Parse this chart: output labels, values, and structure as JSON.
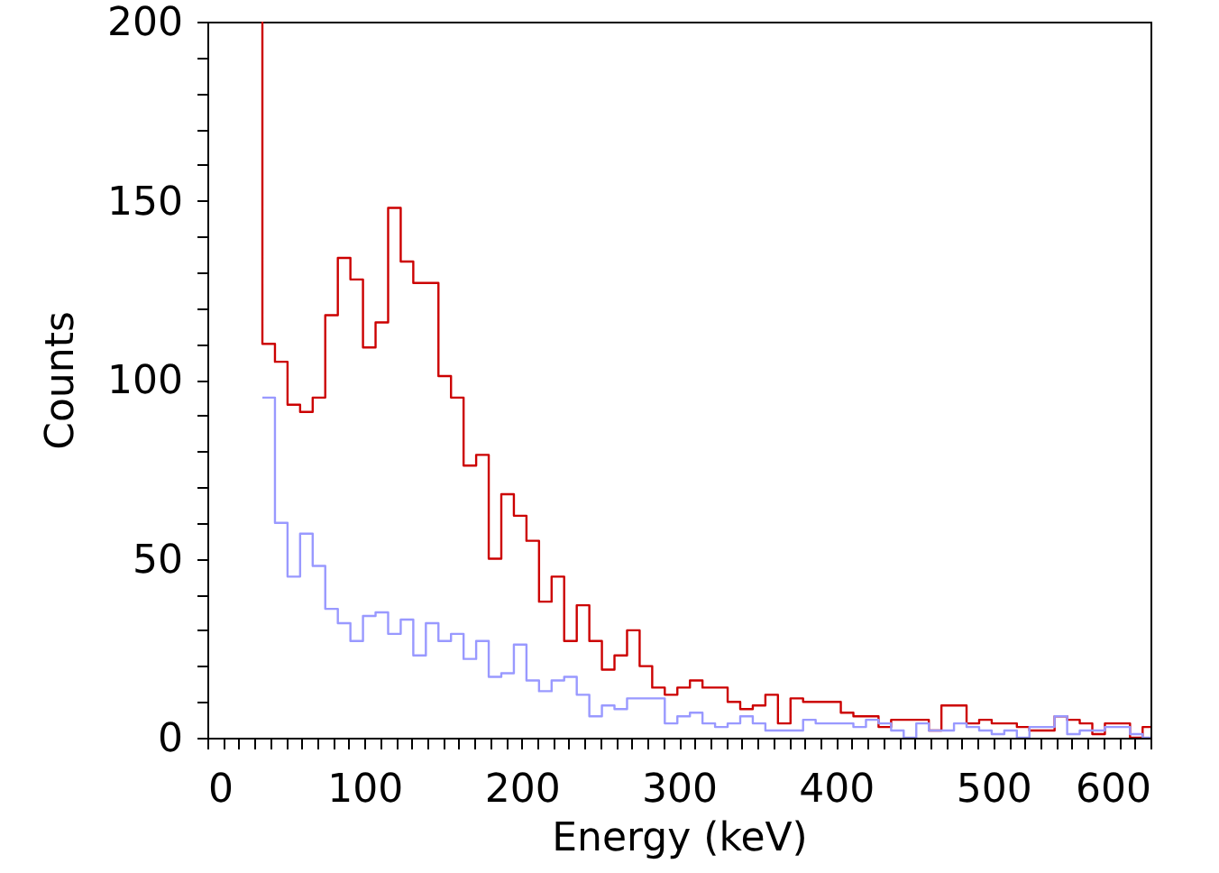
{
  "chart_data": {
    "type": "step",
    "xlabel": "Energy (keV)",
    "ylabel": "Counts",
    "xlim": [
      0,
      600
    ],
    "ylim": [
      0,
      200
    ],
    "xticks": [
      0,
      {
        "value": 10,
        "label": null
      },
      {
        "value": 20,
        "label": null
      },
      {
        "value": 30,
        "label": null
      },
      {
        "value": 40,
        "label": null
      },
      {
        "value": 50,
        "label": null
      },
      {
        "value": 60,
        "label": null
      },
      {
        "value": 70,
        "label": null
      },
      {
        "value": 80,
        "label": null
      },
      {
        "value": 90,
        "label": null
      },
      100,
      {
        "value": 110,
        "label": null
      },
      {
        "value": 120,
        "label": null
      },
      {
        "value": 130,
        "label": null
      },
      {
        "value": 140,
        "label": null
      },
      {
        "value": 150,
        "label": null
      },
      {
        "value": 160,
        "label": null
      },
      {
        "value": 170,
        "label": null
      },
      {
        "value": 180,
        "label": null
      },
      {
        "value": 190,
        "label": null
      },
      200,
      {
        "value": 210,
        "label": null
      },
      {
        "value": 220,
        "label": null
      },
      {
        "value": 230,
        "label": null
      },
      {
        "value": 240,
        "label": null
      },
      {
        "value": 250,
        "label": null
      },
      {
        "value": 260,
        "label": null
      },
      {
        "value": 270,
        "label": null
      },
      {
        "value": 280,
        "label": null
      },
      {
        "value": 290,
        "label": null
      },
      300,
      {
        "value": 310,
        "label": null
      },
      {
        "value": 320,
        "label": null
      },
      {
        "value": 330,
        "label": null
      },
      {
        "value": 340,
        "label": null
      },
      {
        "value": 350,
        "label": null
      },
      {
        "value": 360,
        "label": null
      },
      {
        "value": 370,
        "label": null
      },
      {
        "value": 380,
        "label": null
      },
      {
        "value": 390,
        "label": null
      },
      400,
      {
        "value": 410,
        "label": null
      },
      {
        "value": 420,
        "label": null
      },
      {
        "value": 430,
        "label": null
      },
      {
        "value": 440,
        "label": null
      },
      {
        "value": 450,
        "label": null
      },
      {
        "value": 460,
        "label": null
      },
      {
        "value": 470,
        "label": null
      },
      {
        "value": 480,
        "label": null
      },
      {
        "value": 490,
        "label": null
      },
      500,
      {
        "value": 510,
        "label": null
      },
      {
        "value": 520,
        "label": null
      },
      {
        "value": 530,
        "label": null
      },
      {
        "value": 540,
        "label": null
      },
      {
        "value": 550,
        "label": null
      },
      {
        "value": 560,
        "label": null
      },
      {
        "value": 570,
        "label": null
      },
      {
        "value": 580,
        "label": null
      },
      {
        "value": 590,
        "label": null
      },
      600
    ],
    "yticks": [
      0,
      {
        "value": 10,
        "label": null
      },
      {
        "value": 20,
        "label": null
      },
      {
        "value": 30,
        "label": null
      },
      {
        "value": 40,
        "label": null
      },
      50,
      {
        "value": 60,
        "label": null
      },
      {
        "value": 70,
        "label": null
      },
      {
        "value": 80,
        "label": null
      },
      {
        "value": 90,
        "label": null
      },
      100,
      {
        "value": 110,
        "label": null
      },
      {
        "value": 120,
        "label": null
      },
      {
        "value": 130,
        "label": null
      },
      {
        "value": 140,
        "label": null
      },
      150,
      {
        "value": 160,
        "label": null
      },
      {
        "value": 170,
        "label": null
      },
      {
        "value": 180,
        "label": null
      },
      {
        "value": 190,
        "label": null
      },
      200
    ],
    "grid": false,
    "marker": "none",
    "line_style": "solid",
    "series": [
      {
        "color": "#cc0000",
        "x": [
          35,
          35,
          43,
          51,
          59,
          67,
          75,
          83,
          91,
          99,
          107,
          115,
          123,
          131,
          139,
          147,
          155,
          163,
          171,
          179,
          187,
          195,
          203,
          211,
          219,
          227,
          235,
          243,
          251,
          259,
          267,
          275,
          283,
          291,
          299,
          307,
          315,
          323,
          331,
          339,
          347,
          355,
          363,
          371,
          379,
          387,
          395,
          403,
          411,
          419,
          427,
          435,
          443,
          451,
          459,
          467,
          475,
          483,
          491,
          499,
          507,
          515,
          523,
          531,
          539,
          547,
          555,
          563,
          571,
          579,
          587,
          595,
          600
        ],
        "values": [
          200,
          110,
          105,
          93,
          91,
          95,
          118,
          134,
          128,
          109,
          116,
          148,
          133,
          127,
          127,
          101,
          95,
          76,
          79,
          50,
          68,
          62,
          55,
          38,
          45,
          27,
          37,
          27,
          19,
          23,
          30,
          20,
          14,
          12,
          14,
          16,
          14,
          14,
          10,
          8,
          9,
          12,
          4,
          11,
          10,
          10,
          10,
          7,
          6,
          6,
          3,
          5,
          5,
          5,
          2,
          9,
          9,
          4,
          5,
          4,
          4,
          3,
          2,
          2,
          6,
          5,
          4,
          1,
          4,
          4,
          0,
          3,
          3
        ]
      },
      {
        "color": "#9999ff",
        "x": [
          35,
          43,
          51,
          59,
          67,
          75,
          83,
          91,
          99,
          107,
          115,
          123,
          131,
          139,
          147,
          155,
          163,
          171,
          179,
          187,
          195,
          203,
          211,
          219,
          227,
          235,
          243,
          251,
          259,
          267,
          275,
          283,
          291,
          299,
          307,
          315,
          323,
          331,
          339,
          347,
          355,
          363,
          371,
          379,
          387,
          395,
          403,
          411,
          419,
          427,
          435,
          443,
          451,
          459,
          467,
          475,
          483,
          491,
          499,
          507,
          515,
          523,
          531,
          539,
          547,
          555,
          563,
          571,
          579,
          587,
          595,
          600
        ],
        "values": [
          95,
          60,
          45,
          57,
          48,
          36,
          32,
          27,
          34,
          35,
          29,
          33,
          23,
          32,
          27,
          29,
          22,
          27,
          17,
          18,
          26,
          16,
          13,
          16,
          17,
          12,
          6,
          9,
          8,
          11,
          11,
          11,
          4,
          6,
          7,
          4,
          3,
          4,
          6,
          4,
          2,
          2,
          2,
          5,
          4,
          4,
          4,
          3,
          5,
          4,
          2,
          0,
          4,
          2,
          2,
          4,
          3,
          2,
          1,
          2,
          0,
          3,
          3,
          6,
          1,
          2,
          2,
          3,
          3,
          1,
          0,
          0
        ]
      }
    ]
  }
}
